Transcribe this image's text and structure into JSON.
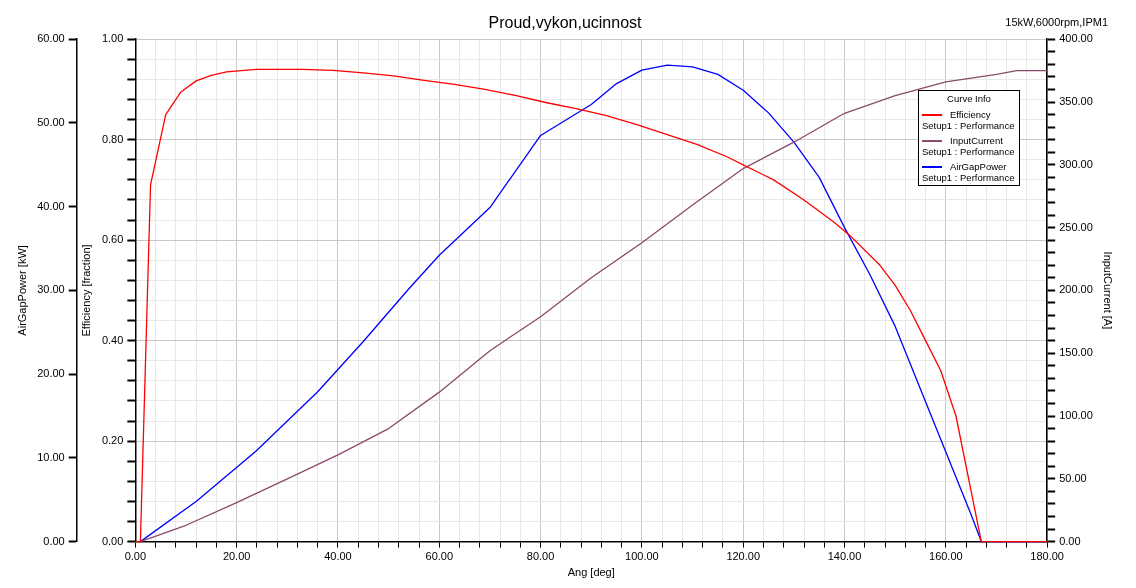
{
  "chart_data": {
    "type": "line",
    "title": "Proud,vykon,ucinnost",
    "annotations": [
      "15kW,6000rpm,IPM1"
    ],
    "xlabel": "Ang [deg]",
    "ylabel": "Efficiency [fraction]",
    "y3label": "AirGapPower [kW]",
    "y2label": "InputCurrent [A]",
    "legend_title": "Curve Info",
    "legend": "top right",
    "grid": true,
    "xlim": [
      0,
      180
    ],
    "xticks": [
      {
        "value": 0,
        "label": "0.00"
      },
      {
        "value": 4,
        "label": null
      },
      {
        "value": 8,
        "label": null
      },
      {
        "value": 12,
        "label": null
      },
      {
        "value": 16,
        "label": null
      },
      {
        "value": 20,
        "label": "20.00"
      },
      {
        "value": 24,
        "label": null
      },
      {
        "value": 28,
        "label": null
      },
      {
        "value": 32,
        "label": null
      },
      {
        "value": 36,
        "label": null
      },
      {
        "value": 40,
        "label": "40.00"
      },
      {
        "value": 44,
        "label": null
      },
      {
        "value": 48,
        "label": null
      },
      {
        "value": 52,
        "label": null
      },
      {
        "value": 56,
        "label": null
      },
      {
        "value": 60,
        "label": "60.00"
      },
      {
        "value": 64,
        "label": null
      },
      {
        "value": 68,
        "label": null
      },
      {
        "value": 72,
        "label": null
      },
      {
        "value": 76,
        "label": null
      },
      {
        "value": 80,
        "label": "80.00"
      },
      {
        "value": 84,
        "label": null
      },
      {
        "value": 88,
        "label": null
      },
      {
        "value": 92,
        "label": null
      },
      {
        "value": 96,
        "label": null
      },
      {
        "value": 100,
        "label": "100.00"
      },
      {
        "value": 104,
        "label": null
      },
      {
        "value": 108,
        "label": null
      },
      {
        "value": 112,
        "label": null
      },
      {
        "value": 116,
        "label": null
      },
      {
        "value": 120,
        "label": "120.00"
      },
      {
        "value": 124,
        "label": null
      },
      {
        "value": 128,
        "label": null
      },
      {
        "value": 132,
        "label": null
      },
      {
        "value": 136,
        "label": null
      },
      {
        "value": 140,
        "label": "140.00"
      },
      {
        "value": 144,
        "label": null
      },
      {
        "value": 148,
        "label": null
      },
      {
        "value": 152,
        "label": null
      },
      {
        "value": 156,
        "label": null
      },
      {
        "value": 160,
        "label": "160.00"
      },
      {
        "value": 164,
        "label": null
      },
      {
        "value": 168,
        "label": null
      },
      {
        "value": 172,
        "label": null
      },
      {
        "value": 176,
        "label": null
      },
      {
        "value": 180,
        "label": "180.00"
      }
    ],
    "ylim": [
      0,
      1
    ],
    "yticks": [
      {
        "value": 0,
        "label": "0.00"
      },
      {
        "value": 0.04,
        "label": null
      },
      {
        "value": 0.08,
        "label": null
      },
      {
        "value": 0.12,
        "label": null
      },
      {
        "value": 0.16,
        "label": null
      },
      {
        "value": 0.2,
        "label": "0.20"
      },
      {
        "value": 0.24,
        "label": null
      },
      {
        "value": 0.28,
        "label": null
      },
      {
        "value": 0.32,
        "label": null
      },
      {
        "value": 0.36,
        "label": null
      },
      {
        "value": 0.4,
        "label": "0.40"
      },
      {
        "value": 0.44,
        "label": null
      },
      {
        "value": 0.48,
        "label": null
      },
      {
        "value": 0.52,
        "label": null
      },
      {
        "value": 0.56,
        "label": null
      },
      {
        "value": 0.6,
        "label": "0.60"
      },
      {
        "value": 0.64,
        "label": null
      },
      {
        "value": 0.68,
        "label": null
      },
      {
        "value": 0.72,
        "label": null
      },
      {
        "value": 0.76,
        "label": null
      },
      {
        "value": 0.8,
        "label": "0.80"
      },
      {
        "value": 0.84,
        "label": null
      },
      {
        "value": 0.88,
        "label": null
      },
      {
        "value": 0.92,
        "label": null
      },
      {
        "value": 0.96,
        "label": null
      },
      {
        "value": 1,
        "label": "1.00"
      }
    ],
    "y3lim": [
      0,
      60
    ],
    "y3ticks": [
      {
        "value": 0,
        "label": "0.00"
      },
      {
        "value": 10,
        "label": "10.00"
      },
      {
        "value": 20,
        "label": "20.00"
      },
      {
        "value": 30,
        "label": "30.00"
      },
      {
        "value": 40,
        "label": "40.00"
      },
      {
        "value": 50,
        "label": "50.00"
      },
      {
        "value": 60,
        "label": "60.00"
      }
    ],
    "y2lim": [
      0,
      400
    ],
    "y2ticks": [
      {
        "value": 0,
        "label": "0.00"
      },
      {
        "value": 10,
        "label": null
      },
      {
        "value": 20,
        "label": null
      },
      {
        "value": 30,
        "label": null
      },
      {
        "value": 40,
        "label": null
      },
      {
        "value": 50,
        "label": "50.00"
      },
      {
        "value": 60,
        "label": null
      },
      {
        "value": 70,
        "label": null
      },
      {
        "value": 80,
        "label": null
      },
      {
        "value": 90,
        "label": null
      },
      {
        "value": 100,
        "label": "100.00"
      },
      {
        "value": 110,
        "label": null
      },
      {
        "value": 120,
        "label": null
      },
      {
        "value": 130,
        "label": null
      },
      {
        "value": 140,
        "label": null
      },
      {
        "value": 150,
        "label": "150.00"
      },
      {
        "value": 160,
        "label": null
      },
      {
        "value": 170,
        "label": null
      },
      {
        "value": 180,
        "label": null
      },
      {
        "value": 190,
        "label": null
      },
      {
        "value": 200,
        "label": "200.00"
      },
      {
        "value": 210,
        "label": null
      },
      {
        "value": 220,
        "label": null
      },
      {
        "value": 230,
        "label": null
      },
      {
        "value": 240,
        "label": null
      },
      {
        "value": 250,
        "label": "250.00"
      },
      {
        "value": 260,
        "label": null
      },
      {
        "value": 270,
        "label": null
      },
      {
        "value": 280,
        "label": null
      },
      {
        "value": 290,
        "label": null
      },
      {
        "value": 300,
        "label": "300.00"
      },
      {
        "value": 310,
        "label": null
      },
      {
        "value": 320,
        "label": null
      },
      {
        "value": 330,
        "label": null
      },
      {
        "value": 340,
        "label": null
      },
      {
        "value": 350,
        "label": "350.00"
      },
      {
        "value": 360,
        "label": null
      },
      {
        "value": 370,
        "label": null
      },
      {
        "value": 380,
        "label": null
      },
      {
        "value": 390,
        "label": null
      },
      {
        "value": 400,
        "label": "400.00"
      }
    ],
    "series": [
      {
        "name": "Efficiency\nSetup1 : Performance",
        "color": "#ff0000",
        "axis": "y",
        "x": [
          0,
          1,
          3,
          6,
          9,
          12,
          15,
          18,
          24,
          33,
          39,
          45,
          51,
          57,
          63,
          69,
          75,
          81,
          87,
          93,
          99,
          105,
          111,
          117,
          120,
          126,
          132,
          138,
          141,
          147,
          150,
          153,
          156,
          159,
          162,
          165,
          167,
          170,
          180
        ],
        "values": [
          0,
          0,
          0.71,
          0.85,
          0.895,
          0.917,
          0.928,
          0.935,
          0.94,
          0.94,
          0.938,
          0.933,
          0.927,
          0.918,
          0.91,
          0.9,
          0.888,
          0.874,
          0.862,
          0.848,
          0.83,
          0.81,
          0.79,
          0.765,
          0.75,
          0.72,
          0.68,
          0.635,
          0.61,
          0.55,
          0.51,
          0.46,
          0.4,
          0.34,
          0.25,
          0.1,
          0,
          0,
          0
        ]
      },
      {
        "name": "InputCurrent\nSetup1 : Performance",
        "color": "#8b4a6b",
        "axis": "y2",
        "x": [
          1,
          10,
          20,
          30,
          40,
          50,
          60,
          70,
          80,
          90,
          100,
          110,
          120,
          130,
          140,
          150,
          160,
          170,
          174,
          180
        ],
        "values": [
          0,
          13,
          31,
          50,
          69,
          90,
          119,
          152,
          179,
          210,
          238,
          268,
          297,
          318,
          341,
          355,
          366,
          372,
          375,
          375
        ]
      },
      {
        "name": "AirGapPower\nSetup1 : Performance",
        "color": "#0000ff",
        "axis": "y3",
        "x": [
          1,
          12,
          24,
          36,
          45,
          54,
          60,
          70,
          80,
          90,
          95,
          100,
          105,
          110,
          115,
          120,
          125,
          130,
          135,
          140,
          145,
          150,
          155,
          160,
          165,
          167,
          180
        ],
        "values": [
          0,
          4.8,
          10.9,
          17.9,
          23.9,
          30.2,
          34.2,
          39.9,
          48.5,
          52.2,
          54.7,
          56.3,
          56.9,
          56.7,
          55.8,
          53.9,
          51.2,
          47.7,
          43.5,
          37.5,
          31.9,
          25.7,
          18.2,
          10.7,
          3.2,
          0,
          0
        ]
      }
    ]
  }
}
